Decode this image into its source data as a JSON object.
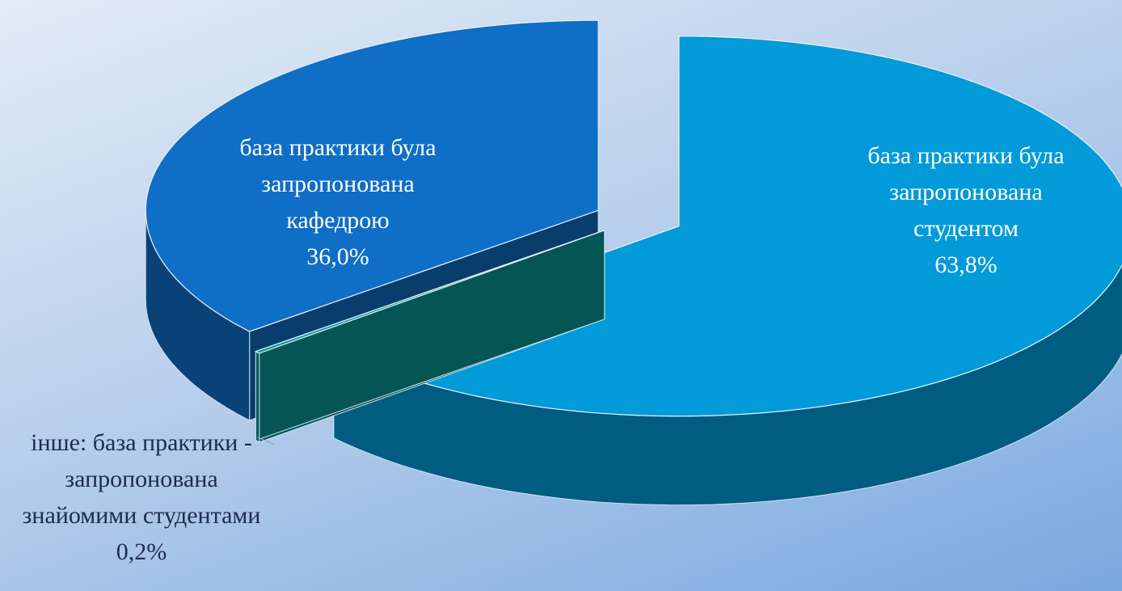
{
  "chart_data": {
    "type": "pie3d",
    "categories": [
      "база практики була запропонована студентом",
      "інше: база практики - запропонована знайомими студентами",
      "база практики була запропонована кафедрою"
    ],
    "values": [
      63.8,
      0.2,
      36.0
    ],
    "value_labels": [
      "63,8%",
      "0,2%",
      "36,0%"
    ],
    "colors": [
      "#029ad8",
      "#0a9a9a",
      "#0f6ec5"
    ]
  }
}
